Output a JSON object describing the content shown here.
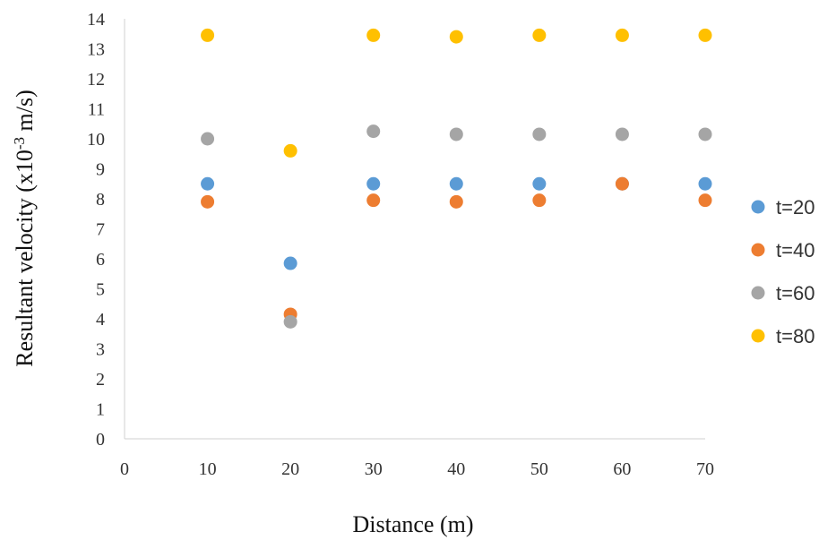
{
  "chart_data": {
    "type": "scatter",
    "title": "",
    "xlabel": "Distance (m)",
    "ylabel_parts": {
      "before": "Resultant velocity (x10",
      "sup": "-3",
      "after": " m/s)"
    },
    "xlim": [
      0,
      70
    ],
    "ylim": [
      0,
      14
    ],
    "xticks": [
      "0",
      "10",
      "20",
      "30",
      "40",
      "50",
      "60",
      "70"
    ],
    "yticks": [
      "0",
      "1",
      "2",
      "3",
      "4",
      "5",
      "6",
      "7",
      "8",
      "9",
      "10",
      "11",
      "12",
      "13",
      "14"
    ],
    "grid": false,
    "legend_position": "right",
    "x": [
      10,
      20,
      30,
      40,
      50,
      60,
      70
    ],
    "series": [
      {
        "name": "t=20",
        "color": "#5B9BD5",
        "values": [
          8.5,
          5.85,
          8.5,
          8.5,
          8.5,
          8.5,
          8.5
        ]
      },
      {
        "name": "t=40",
        "color": "#ED7D31",
        "values": [
          7.9,
          4.15,
          7.95,
          7.9,
          7.95,
          8.5,
          7.95
        ]
      },
      {
        "name": "t=60",
        "color": "#A5A5A5",
        "values": [
          10.0,
          3.9,
          10.25,
          10.15,
          10.15,
          10.15,
          10.15
        ]
      },
      {
        "name": "t=80",
        "color": "#FFC000",
        "values": [
          13.45,
          9.6,
          13.45,
          13.4,
          13.45,
          13.45,
          13.45
        ]
      }
    ]
  }
}
